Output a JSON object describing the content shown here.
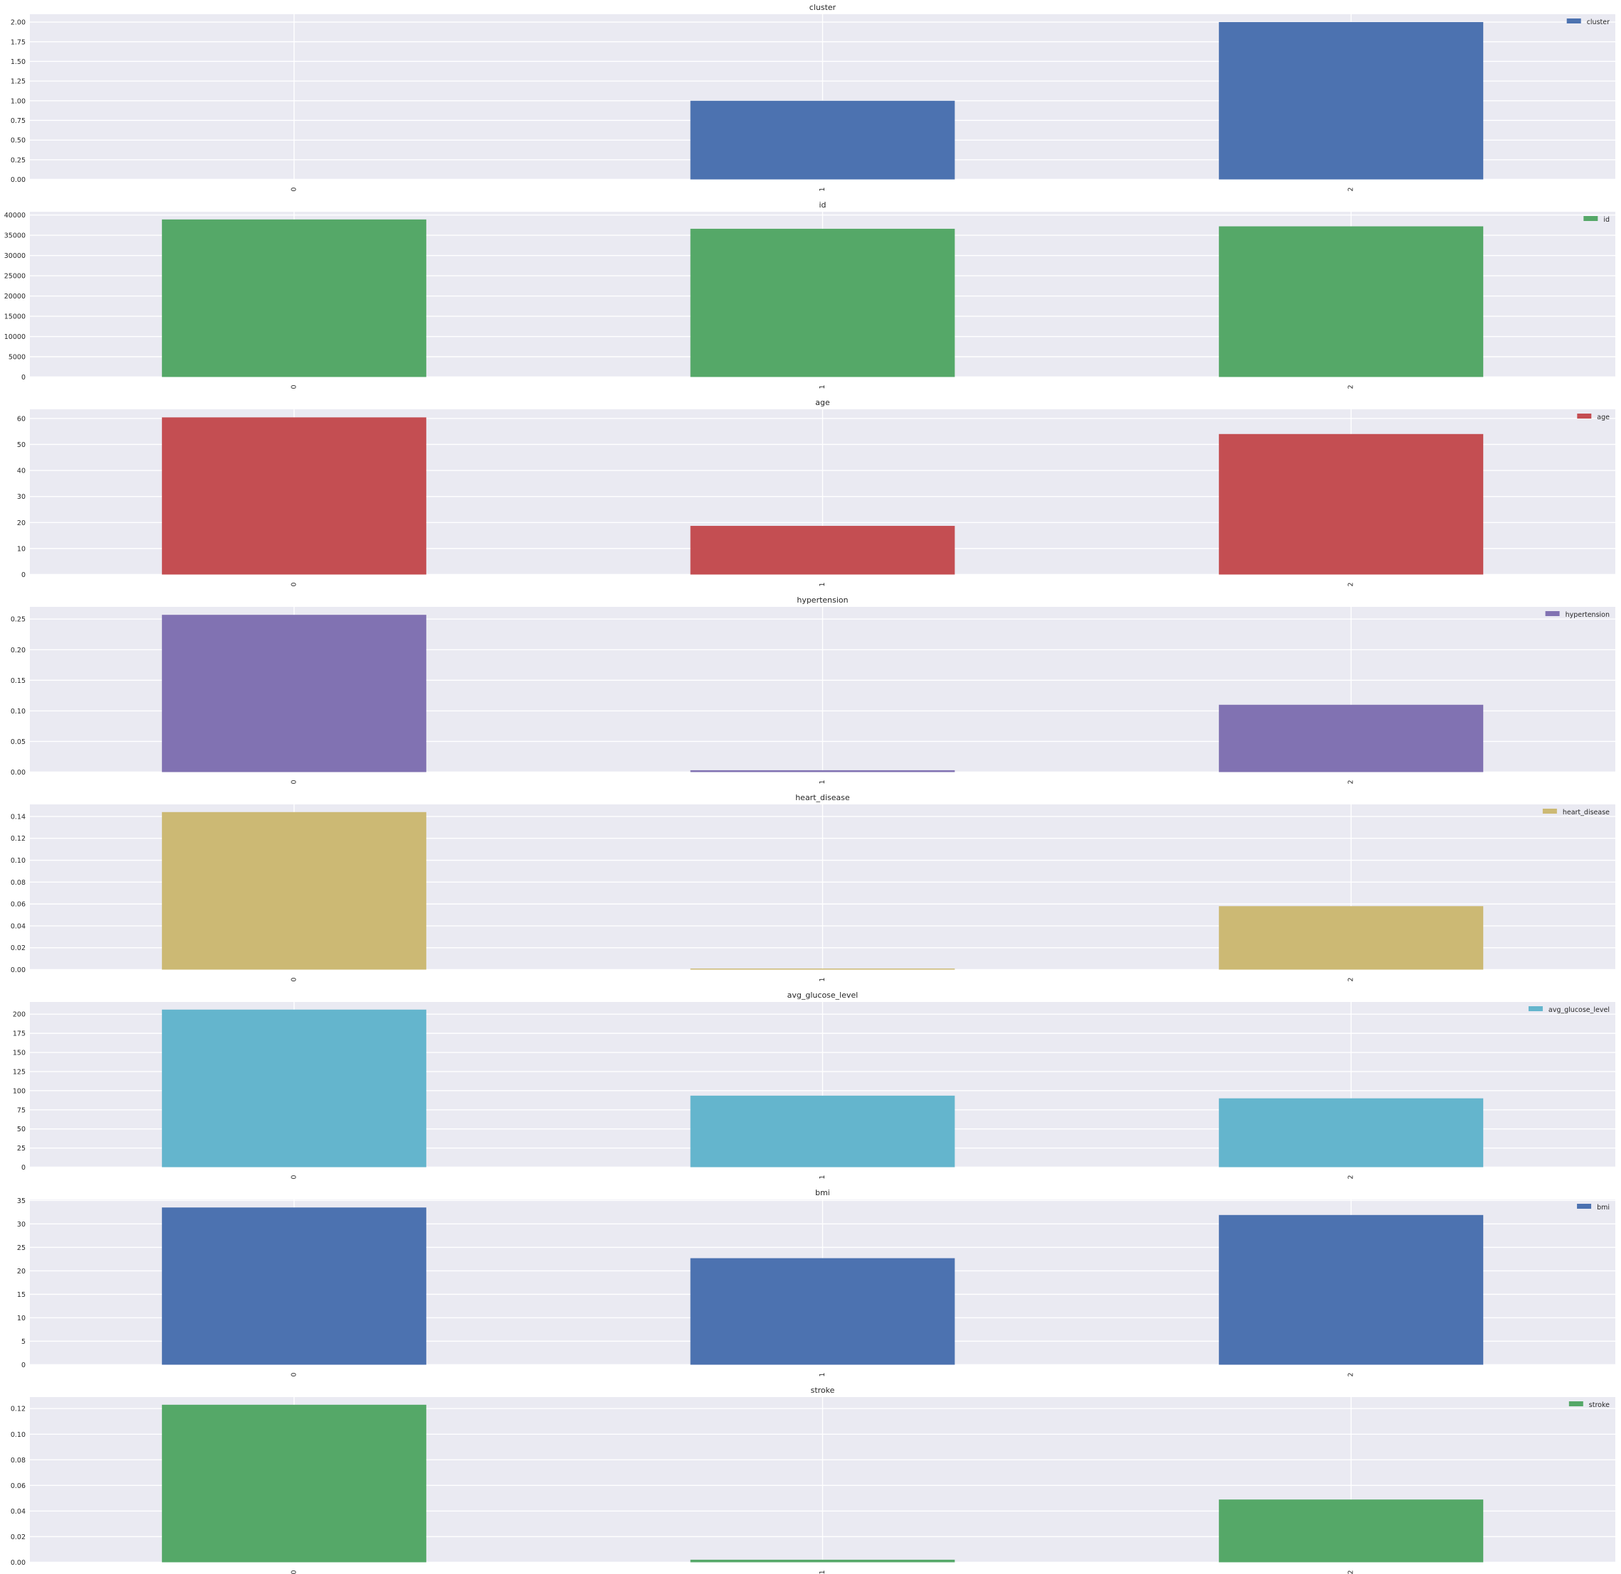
{
  "chart_data": [
    {
      "type": "bar",
      "title": "cluster",
      "categories": [
        "0",
        "1",
        "2"
      ],
      "series": [
        {
          "name": "cluster",
          "values": [
            0,
            1,
            2
          ]
        }
      ],
      "ylim": [
        0,
        2.1
      ],
      "yticks": [
        "0.00",
        "0.25",
        "0.50",
        "0.75",
        "1.00",
        "1.25",
        "1.50",
        "1.75",
        "2.00"
      ],
      "ytick_values": [
        0,
        0.25,
        0.5,
        0.75,
        1.0,
        1.25,
        1.5,
        1.75,
        2.0
      ],
      "color": "#4C72B0",
      "grid": true,
      "legend": "top-right"
    },
    {
      "type": "bar",
      "title": "id",
      "categories": [
        "0",
        "1",
        "2"
      ],
      "series": [
        {
          "name": "id",
          "values": [
            38900,
            36600,
            37200
          ]
        }
      ],
      "ylim": [
        0,
        40800
      ],
      "yticks": [
        "0",
        "5000",
        "10000",
        "15000",
        "20000",
        "25000",
        "30000",
        "35000",
        "40000"
      ],
      "ytick_values": [
        0,
        5000,
        10000,
        15000,
        20000,
        25000,
        30000,
        35000,
        40000
      ],
      "color": "#55A868",
      "grid": true,
      "legend": "top-right"
    },
    {
      "type": "bar",
      "title": "age",
      "categories": [
        "0",
        "1",
        "2"
      ],
      "series": [
        {
          "name": "age",
          "values": [
            60.4,
            18.7,
            54.0
          ]
        }
      ],
      "ylim": [
        0,
        63.5
      ],
      "yticks": [
        "0",
        "10",
        "20",
        "30",
        "40",
        "50",
        "60"
      ],
      "ytick_values": [
        0,
        10,
        20,
        30,
        40,
        50,
        60
      ],
      "color": "#C44E52",
      "grid": true,
      "legend": "top-right"
    },
    {
      "type": "bar",
      "title": "hypertension",
      "categories": [
        "0",
        "1",
        "2"
      ],
      "series": [
        {
          "name": "hypertension",
          "values": [
            0.257,
            0.003,
            0.11
          ]
        }
      ],
      "ylim": [
        0,
        0.27
      ],
      "yticks": [
        "0.00",
        "0.05",
        "0.10",
        "0.15",
        "0.20",
        "0.25"
      ],
      "ytick_values": [
        0,
        0.05,
        0.1,
        0.15,
        0.2,
        0.25
      ],
      "color": "#8172B2",
      "grid": true,
      "legend": "top-right"
    },
    {
      "type": "bar",
      "title": "heart_disease",
      "categories": [
        "0",
        "1",
        "2"
      ],
      "series": [
        {
          "name": "heart_disease",
          "values": [
            0.144,
            0.001,
            0.058
          ]
        }
      ],
      "ylim": [
        0,
        0.151
      ],
      "yticks": [
        "0.00",
        "0.02",
        "0.04",
        "0.06",
        "0.08",
        "0.10",
        "0.12",
        "0.14"
      ],
      "ytick_values": [
        0,
        0.02,
        0.04,
        0.06,
        0.08,
        0.1,
        0.12,
        0.14
      ],
      "color": "#CCB974",
      "grid": true,
      "legend": "top-right"
    },
    {
      "type": "bar",
      "title": "avg_glucose_level",
      "categories": [
        "0",
        "1",
        "2"
      ],
      "series": [
        {
          "name": "avg_glucose_level",
          "values": [
            206.0,
            93.5,
            90.0
          ]
        }
      ],
      "ylim": [
        0,
        216
      ],
      "yticks": [
        "0",
        "25",
        "50",
        "75",
        "100",
        "125",
        "150",
        "175",
        "200"
      ],
      "ytick_values": [
        0,
        25,
        50,
        75,
        100,
        125,
        150,
        175,
        200
      ],
      "color": "#64B5CD",
      "grid": true,
      "legend": "top-right"
    },
    {
      "type": "bar",
      "title": "bmi",
      "categories": [
        "0",
        "1",
        "2"
      ],
      "series": [
        {
          "name": "bmi",
          "values": [
            33.5,
            22.7,
            31.9
          ]
        }
      ],
      "ylim": [
        0,
        35.2
      ],
      "yticks": [
        "0",
        "5",
        "10",
        "15",
        "20",
        "25",
        "30",
        "35"
      ],
      "ytick_values": [
        0,
        5,
        10,
        15,
        20,
        25,
        30,
        35
      ],
      "color": "#4C72B0",
      "grid": true,
      "legend": "top-right"
    },
    {
      "type": "bar",
      "title": "stroke",
      "categories": [
        "0",
        "1",
        "2"
      ],
      "series": [
        {
          "name": "stroke",
          "values": [
            0.123,
            0.002,
            0.049
          ]
        }
      ],
      "ylim": [
        0,
        0.129
      ],
      "yticks": [
        "0.00",
        "0.02",
        "0.04",
        "0.06",
        "0.08",
        "0.10",
        "0.12"
      ],
      "ytick_values": [
        0,
        0.02,
        0.04,
        0.06,
        0.08,
        0.1,
        0.12
      ],
      "color": "#55A868",
      "grid": true,
      "legend": "top-right"
    }
  ]
}
